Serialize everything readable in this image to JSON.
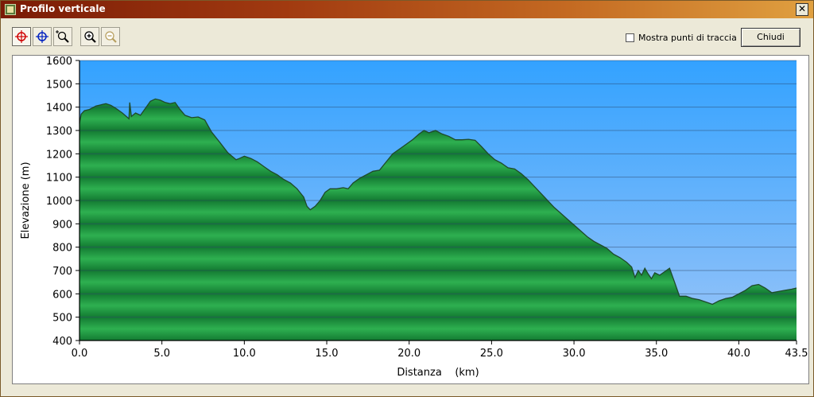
{
  "window": {
    "title": "Profilo verticale",
    "close_glyph": "✕"
  },
  "toolbar": {
    "buttons": [
      {
        "name": "crosshair-red-icon",
        "color": "#d00000",
        "active": true
      },
      {
        "name": "crosshair-blue-icon",
        "color": "#0020c0",
        "active": false
      },
      {
        "name": "zoom-area-icon",
        "active": false
      },
      {
        "name": "zoom-in-icon",
        "active": false
      },
      {
        "name": "zoom-out-icon",
        "active": false,
        "disabled": true
      }
    ],
    "show_points_label": "Mostra punti di traccia",
    "show_points_checked": false,
    "close_label": "Chiudi"
  },
  "chart_data": {
    "type": "area",
    "xlabel": "Distanza    (km)",
    "ylabel": "Elevazione (m)",
    "xlim": [
      0,
      43.5
    ],
    "ylim": [
      400,
      1600
    ],
    "x_ticks": [
      0,
      5,
      10,
      15,
      20,
      25,
      30,
      35,
      40,
      43.5
    ],
    "x_tick_labels": [
      "0.0",
      "5.0",
      "10.0",
      "15.0",
      "20.0",
      "25.0",
      "30.0",
      "35.0",
      "40.0",
      "43.5"
    ],
    "y_ticks": [
      400,
      500,
      600,
      700,
      800,
      900,
      1000,
      1100,
      1200,
      1300,
      1400,
      1500,
      1600
    ],
    "y_tick_labels": [
      "400",
      "500",
      "600",
      "700",
      "800",
      "900",
      "1000",
      "1100",
      "1200",
      "1300",
      "1400",
      "1500",
      "1600"
    ],
    "grid": true,
    "colors": {
      "sky_top": "#33a2ff",
      "sky_bottom": "#98c4f8",
      "fill_light": "#2eb050",
      "fill_dark": "#137a32",
      "line": "#1f4a2a"
    },
    "x": [
      0,
      0.1,
      0.3,
      0.6,
      1.0,
      1.3,
      1.6,
      1.9,
      2.2,
      2.6,
      3.0,
      3.05,
      3.15,
      3.4,
      3.7,
      4.0,
      4.3,
      4.6,
      4.9,
      5.2,
      5.5,
      5.8,
      6.1,
      6.4,
      6.8,
      7.2,
      7.6,
      8.0,
      8.5,
      9.0,
      9.5,
      9.7,
      10.0,
      10.4,
      10.8,
      11.2,
      11.6,
      12.0,
      12.4,
      12.8,
      13.2,
      13.6,
      13.8,
      14.0,
      14.3,
      14.6,
      14.9,
      15.2,
      15.6,
      16.0,
      16.3,
      16.6,
      17.0,
      17.4,
      17.8,
      18.2,
      18.6,
      19.0,
      19.4,
      19.8,
      20.2,
      20.6,
      20.9,
      21.2,
      21.6,
      22.0,
      22.4,
      22.8,
      23.2,
      23.6,
      24.0,
      24.4,
      24.8,
      25.2,
      25.6,
      26.0,
      26.4,
      26.8,
      27.2,
      27.6,
      28.0,
      28.4,
      28.8,
      29.2,
      29.6,
      30.0,
      30.4,
      30.8,
      31.2,
      31.6,
      32.0,
      32.4,
      32.8,
      33.2,
      33.5,
      33.7,
      33.9,
      34.1,
      34.3,
      34.5,
      34.7,
      34.9,
      35.2,
      35.5,
      35.8,
      36.1,
      36.4,
      36.8,
      37.2,
      37.6,
      38.0,
      38.4,
      38.8,
      39.2,
      39.6,
      40.0,
      40.4,
      40.8,
      41.2,
      41.6,
      42.0,
      42.4,
      42.8,
      43.2,
      43.5
    ],
    "y": [
      1330,
      1370,
      1385,
      1390,
      1405,
      1410,
      1415,
      1408,
      1395,
      1375,
      1350,
      1420,
      1360,
      1375,
      1365,
      1395,
      1425,
      1435,
      1430,
      1420,
      1415,
      1420,
      1390,
      1365,
      1355,
      1358,
      1345,
      1295,
      1250,
      1205,
      1175,
      1180,
      1190,
      1180,
      1165,
      1145,
      1125,
      1110,
      1090,
      1075,
      1050,
      1015,
      975,
      960,
      975,
      1000,
      1035,
      1050,
      1050,
      1055,
      1050,
      1075,
      1095,
      1110,
      1125,
      1130,
      1165,
      1200,
      1220,
      1240,
      1260,
      1285,
      1300,
      1290,
      1300,
      1285,
      1275,
      1260,
      1260,
      1262,
      1258,
      1230,
      1200,
      1175,
      1160,
      1140,
      1135,
      1115,
      1090,
      1060,
      1030,
      1000,
      970,
      945,
      920,
      895,
      870,
      845,
      825,
      810,
      795,
      770,
      755,
      735,
      715,
      670,
      700,
      680,
      710,
      685,
      665,
      690,
      680,
      695,
      710,
      650,
      590,
      590,
      580,
      575,
      565,
      555,
      570,
      580,
      585,
      600,
      615,
      635,
      640,
      625,
      605,
      610,
      615,
      620,
      625
    ]
  }
}
